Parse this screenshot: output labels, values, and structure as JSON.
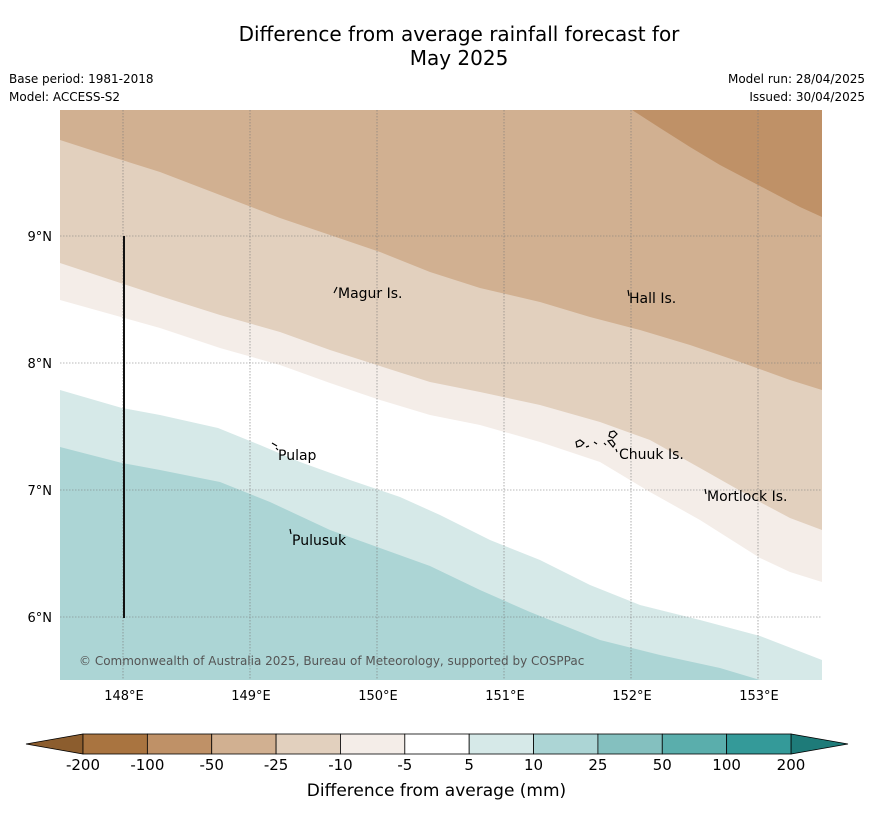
{
  "title": {
    "line1": "Difference from average rainfall forecast for",
    "line2": "May 2025"
  },
  "meta": {
    "base_period": "Base period: 1981-2018",
    "model": "Model: ACCESS-S2",
    "model_run": "Model run: 28/04/2025",
    "issued": "Issued: 30/04/2025"
  },
  "map": {
    "lat_labels": [
      "9°N",
      "8°N",
      "7°N",
      "6°N"
    ],
    "lon_labels": [
      "148°E",
      "149°E",
      "150°E",
      "151°E",
      "152°E",
      "153°E"
    ],
    "places": [
      "Magur Is.",
      "Hall Is.",
      "Pulap",
      "Chuuk Is.",
      "Mortlock Is.",
      "Pulusuk"
    ],
    "copyright": "© Commonwealth of Australia 2025, Bureau of Meteorology, supported by COSPPac"
  },
  "colorbar": {
    "ticks": [
      "-200",
      "-100",
      "-50",
      "-25",
      "-10",
      "-5",
      "5",
      "10",
      "25",
      "50",
      "100",
      "200"
    ],
    "colors": [
      "#a97440",
      "#bf9167",
      "#d1b091",
      "#e2d0be",
      "#f4ede8",
      "#ffffff",
      "#d6e9e8",
      "#acd5d5",
      "#84c0bf",
      "#5aaeac",
      "#349a99"
    ],
    "under_color": "#8c5d2e",
    "over_color": "#1e7b79",
    "label": "Difference from average (mm)"
  }
}
